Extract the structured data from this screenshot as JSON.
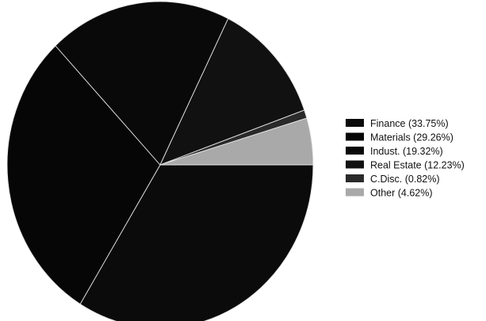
{
  "chart_data": {
    "type": "pie",
    "title": "",
    "legend_position": "right",
    "start_angle_note": "first slice begins at 3 o'clock and proceeds clockwise",
    "slices": [
      {
        "label": "Finance (33.75%)",
        "name": "Finance",
        "value": 33.75,
        "color": "#0b0b0b"
      },
      {
        "label": "Materials (29.26%)",
        "name": "Materials",
        "value": 29.26,
        "color": "#060606"
      },
      {
        "label": "Indust. (19.32%)",
        "name": "Indust.",
        "value": 19.32,
        "color": "#090909"
      },
      {
        "label": "Real Estate (12.23%)",
        "name": "Real Estate",
        "value": 12.23,
        "color": "#111111"
      },
      {
        "label": "C.Disc. (0.82%)",
        "name": "C.Disc.",
        "value": 0.82,
        "color": "#2a2a2a"
      },
      {
        "label": "Other (4.62%)",
        "name": "Other",
        "value": 4.62,
        "color": "#a9a9a9"
      }
    ]
  }
}
